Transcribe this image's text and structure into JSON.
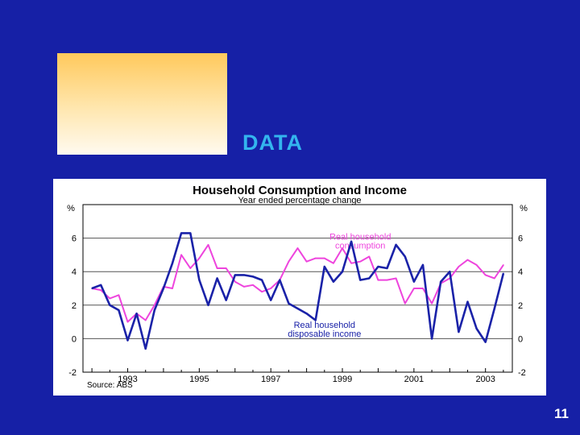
{
  "slide": {
    "title": "DATA",
    "page_number": "11"
  },
  "chart_data": {
    "type": "line",
    "title": "Household Consumption and Income",
    "subtitle": "Year ended percentage change",
    "ylabel_left": "%",
    "ylabel_right": "%",
    "ylim": [
      -2,
      8
    ],
    "yticks": [
      -2,
      0,
      2,
      4,
      6
    ],
    "xlim": [
      1991.75,
      2003.75
    ],
    "xtick_labels": [
      "1993",
      "1995",
      "1997",
      "1999",
      "2001",
      "2003"
    ],
    "xtick_positions": [
      1993,
      1995,
      1997,
      1999,
      2001,
      2003
    ],
    "grid": "horizontal",
    "source": "Source: ABS",
    "colors": {
      "consumption": "#ee44dd",
      "income": "#1a22a8"
    },
    "series": [
      {
        "name": "Real household consumption",
        "key": "consumption",
        "label_lines": [
          "Real household",
          "consumption"
        ],
        "label_at": [
          1999.5,
          5.9
        ],
        "values": [
          [
            1992.0,
            3.0
          ],
          [
            1992.25,
            2.9
          ],
          [
            1992.5,
            2.4
          ],
          [
            1992.75,
            2.6
          ],
          [
            1993.0,
            1.0
          ],
          [
            1993.25,
            1.5
          ],
          [
            1993.5,
            1.1
          ],
          [
            1993.75,
            2.0
          ],
          [
            1994.0,
            3.1
          ],
          [
            1994.25,
            3.0
          ],
          [
            1994.5,
            5.0
          ],
          [
            1994.75,
            4.2
          ],
          [
            1995.0,
            4.8
          ],
          [
            1995.25,
            5.6
          ],
          [
            1995.5,
            4.2
          ],
          [
            1995.75,
            4.2
          ],
          [
            1996.0,
            3.4
          ],
          [
            1996.25,
            3.1
          ],
          [
            1996.5,
            3.2
          ],
          [
            1996.75,
            2.8
          ],
          [
            1997.0,
            3.0
          ],
          [
            1997.25,
            3.5
          ],
          [
            1997.5,
            4.6
          ],
          [
            1997.75,
            5.4
          ],
          [
            1998.0,
            4.6
          ],
          [
            1998.25,
            4.8
          ],
          [
            1998.5,
            4.8
          ],
          [
            1998.75,
            4.5
          ],
          [
            1999.0,
            5.4
          ],
          [
            1999.25,
            4.5
          ],
          [
            1999.5,
            4.6
          ],
          [
            1999.75,
            4.9
          ],
          [
            2000.0,
            3.5
          ],
          [
            2000.25,
            3.5
          ],
          [
            2000.5,
            3.6
          ],
          [
            2000.75,
            2.1
          ],
          [
            2001.0,
            3.0
          ],
          [
            2001.25,
            3.0
          ],
          [
            2001.5,
            2.1
          ],
          [
            2001.75,
            3.3
          ],
          [
            2002.0,
            3.6
          ],
          [
            2002.25,
            4.3
          ],
          [
            2002.5,
            4.7
          ],
          [
            2002.75,
            4.4
          ],
          [
            2003.0,
            3.8
          ],
          [
            2003.25,
            3.6
          ],
          [
            2003.5,
            4.4
          ]
        ]
      },
      {
        "name": "Real household disposable income",
        "key": "income",
        "label_lines": [
          "Real household",
          "disposable income"
        ],
        "label_at": [
          1998.5,
          0.65
        ],
        "values": [
          [
            1992.0,
            3.0
          ],
          [
            1992.25,
            3.2
          ],
          [
            1992.5,
            2.0
          ],
          [
            1992.75,
            1.7
          ],
          [
            1993.0,
            -0.1
          ],
          [
            1993.25,
            1.5
          ],
          [
            1993.5,
            -0.6
          ],
          [
            1993.75,
            1.7
          ],
          [
            1994.0,
            3.0
          ],
          [
            1994.25,
            4.5
          ],
          [
            1994.5,
            6.3
          ],
          [
            1994.75,
            6.3
          ],
          [
            1995.0,
            3.5
          ],
          [
            1995.25,
            2.0
          ],
          [
            1995.5,
            3.6
          ],
          [
            1995.75,
            2.3
          ],
          [
            1996.0,
            3.8
          ],
          [
            1996.25,
            3.8
          ],
          [
            1996.5,
            3.7
          ],
          [
            1996.75,
            3.5
          ],
          [
            1997.0,
            2.3
          ],
          [
            1997.25,
            3.5
          ],
          [
            1997.5,
            2.1
          ],
          [
            1997.75,
            1.8
          ],
          [
            1998.0,
            1.5
          ],
          [
            1998.25,
            1.1
          ],
          [
            1998.5,
            4.3
          ],
          [
            1998.75,
            3.4
          ],
          [
            1999.0,
            4.0
          ],
          [
            1999.25,
            5.8
          ],
          [
            1999.5,
            3.5
          ],
          [
            1999.75,
            3.6
          ],
          [
            2000.0,
            4.3
          ],
          [
            2000.25,
            4.2
          ],
          [
            2000.5,
            5.6
          ],
          [
            2000.75,
            4.9
          ],
          [
            2001.0,
            3.4
          ],
          [
            2001.25,
            4.4
          ],
          [
            2001.5,
            0.0
          ],
          [
            2001.75,
            3.4
          ],
          [
            2002.0,
            4.0
          ],
          [
            2002.25,
            0.4
          ],
          [
            2002.5,
            2.2
          ],
          [
            2002.75,
            0.6
          ],
          [
            2003.0,
            -0.2
          ],
          [
            2003.25,
            1.8
          ],
          [
            2003.5,
            3.9
          ]
        ]
      }
    ]
  }
}
